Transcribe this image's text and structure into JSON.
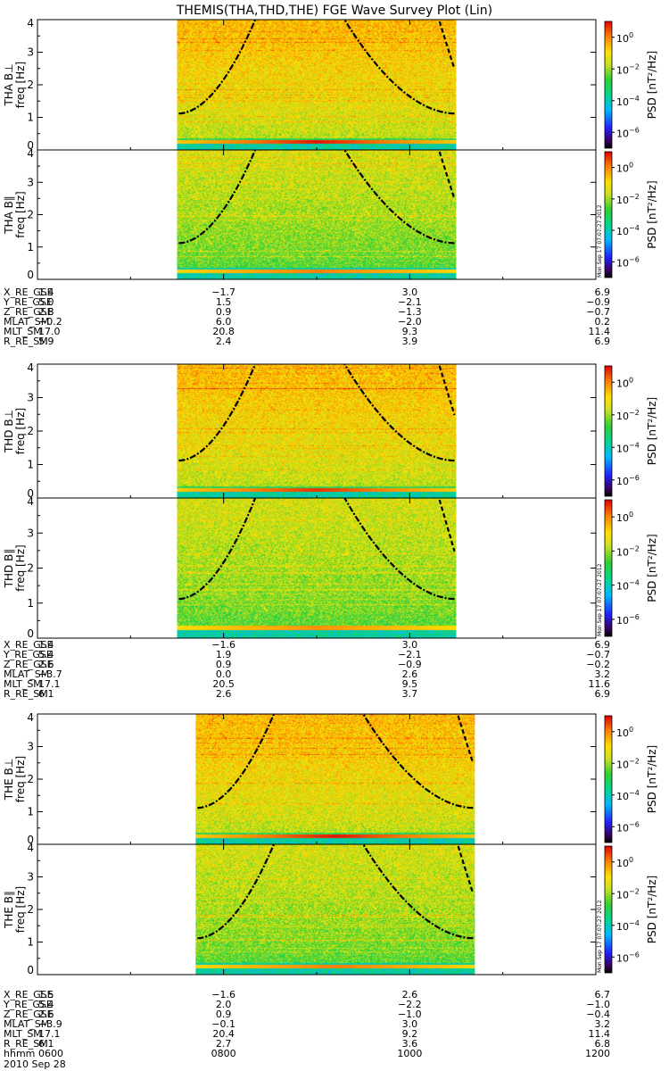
{
  "title": "THEMIS(THA,THD,THE) FGE Wave Survey Plot (Lin)",
  "date_label": "2010 Sep 28",
  "timestamp": "Mon Sep 17 07:07:27 2012",
  "colorbar": {
    "label": "PSD [nT²/Hz]",
    "ticks": [
      {
        "mant": "10",
        "exp": "0"
      },
      {
        "mant": "10",
        "exp": "−2"
      },
      {
        "mant": "10",
        "exp": "−4"
      },
      {
        "mant": "10",
        "exp": "−6"
      }
    ]
  },
  "chart_data": {
    "type": "heatmap",
    "x_axis": {
      "label": "hhmm",
      "tick_labels": [
        "0600",
        "0800",
        "1000",
        "1200"
      ],
      "range_hours": [
        6,
        12
      ]
    },
    "y_axis": {
      "label": "freq [Hz]",
      "tick_labels": [
        "0",
        "1",
        "2",
        "3",
        "4"
      ],
      "range": [
        0,
        4
      ]
    },
    "colorscale": "rainbow, log PSD from 1e-7 to 1e1 nT²/Hz",
    "panels": [
      {
        "label": "THA B⊥",
        "data_start_hours": 7.5,
        "data_end_hours": 10.5,
        "band_freq": 0.25,
        "band_strength": 1.0,
        "background": "high"
      },
      {
        "label": "THA B∥",
        "data_start_hours": 7.5,
        "data_end_hours": 10.5,
        "band_freq": 0.25,
        "band_strength": 0.6,
        "background": "mid"
      },
      {
        "label": "THD B⊥",
        "data_start_hours": 7.5,
        "data_end_hours": 10.5,
        "band_freq": 0.25,
        "band_strength": 0.9,
        "background": "high"
      },
      {
        "label": "THD B∥",
        "data_start_hours": 7.5,
        "data_end_hours": 10.5,
        "band_freq": 0.3,
        "band_strength": 0.5,
        "background": "mid"
      },
      {
        "label": "THE B⊥",
        "data_start_hours": 7.7,
        "data_end_hours": 10.7,
        "band_freq": 0.25,
        "band_strength": 1.0,
        "background": "high"
      },
      {
        "label": "THE B∥",
        "data_start_hours": 7.7,
        "data_end_hours": 10.7,
        "band_freq": 0.25,
        "band_strength": 0.6,
        "background": "mid"
      }
    ],
    "ephemeris": [
      {
        "probe": "THA",
        "rows": [
          {
            "name": "X_RE_GSE",
            "values": [
              "1.4",
              "−1.7",
              "3.0",
              "6.9"
            ]
          },
          {
            "name": "Y_RE_GSE",
            "values": [
              "5.0",
              "1.5",
              "−2.1",
              "−0.9"
            ]
          },
          {
            "name": "Z_RE_GSE",
            "values": [
              "2.8",
              "0.9",
              "−1.3",
              "−0.7"
            ]
          },
          {
            "name": "MLAT_SM",
            "values": [
              "−0.2",
              "6.0",
              "−2.0",
              "0.2"
            ]
          },
          {
            "name": "MLT_SM",
            "values": [
              "17.0",
              "20.8",
              "9.3",
              "11.4"
            ]
          },
          {
            "name": "R_RE_SM",
            "values": [
              "5.9",
              "2.4",
              "3.9",
              "6.9"
            ]
          }
        ]
      },
      {
        "probe": "THD",
        "rows": [
          {
            "name": "X_RE_GSE",
            "values": [
              "1.4",
              "−1.6",
              "3.0",
              "6.9"
            ]
          },
          {
            "name": "Y_RE_GSE",
            "values": [
              "5.4",
              "1.9",
              "−2.1",
              "−0.7"
            ]
          },
          {
            "name": "Z_RE_GSE",
            "values": [
              "2.6",
              "0.9",
              "−0.9",
              "−0.2"
            ]
          },
          {
            "name": "MLAT_SM",
            "values": [
              "−3.7",
              "0.0",
              "2.6",
              "3.2"
            ]
          },
          {
            "name": "MLT_SM",
            "values": [
              "17.1",
              "20.5",
              "9.5",
              "11.6"
            ]
          },
          {
            "name": "R_RE_SM",
            "values": [
              "6.1",
              "2.6",
              "3.7",
              "6.9"
            ]
          }
        ]
      },
      {
        "probe": "THE",
        "rows": [
          {
            "name": "X_RE_GSE",
            "values": [
              "1.5",
              "−1.6",
              "2.6",
              "6.7"
            ]
          },
          {
            "name": "Y_RE_GSE",
            "values": [
              "5.4",
              "2.0",
              "−2.2",
              "−1.0"
            ]
          },
          {
            "name": "Z_RE_GSE",
            "values": [
              "2.6",
              "0.9",
              "−1.0",
              "−0.4"
            ]
          },
          {
            "name": "MLAT_SM",
            "values": [
              "−3.9",
              "−0.1",
              "3.0",
              "3.2"
            ]
          },
          {
            "name": "MLT_SM",
            "values": [
              "17.1",
              "20.4",
              "9.2",
              "11.4"
            ]
          },
          {
            "name": "R_RE_SM",
            "values": [
              "6.1",
              "2.7",
              "3.6",
              "6.8"
            ]
          }
        ]
      }
    ]
  }
}
